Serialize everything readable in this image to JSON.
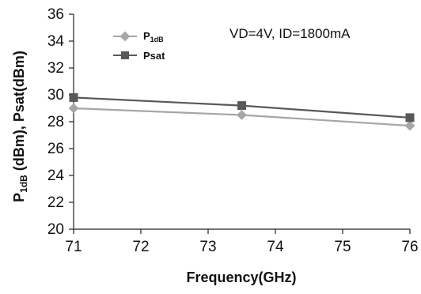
{
  "chart_data": {
    "type": "line",
    "title": "",
    "xlabel": "Frequency(GHz)",
    "ylabel": {
      "p1db_main": "P",
      "p1db_sub": "1dB",
      "rest": " (dBm), Psat(dBm)"
    },
    "xlim": [
      71,
      76
    ],
    "ylim": [
      20,
      36
    ],
    "x_ticks": [
      "71",
      "72",
      "73",
      "74",
      "75",
      "76"
    ],
    "y_ticks": [
      "20",
      "22",
      "24",
      "26",
      "28",
      "30",
      "32",
      "34",
      "36"
    ],
    "grid": false,
    "legend_position": "top-left",
    "annotation": "VD=4V, ID=1800mA",
    "series": [
      {
        "key": "p1db",
        "name_main": "P",
        "name_sub": "1dB",
        "marker": "diamond",
        "color": "#a6a6a6",
        "x": [
          71,
          73.5,
          76
        ],
        "y": [
          29.0,
          28.5,
          27.7
        ]
      },
      {
        "key": "psat",
        "name_main": "Psat",
        "name_sub": "",
        "marker": "square",
        "color": "#595959",
        "x": [
          71,
          73.5,
          76
        ],
        "y": [
          29.8,
          29.2,
          28.3
        ]
      }
    ]
  }
}
